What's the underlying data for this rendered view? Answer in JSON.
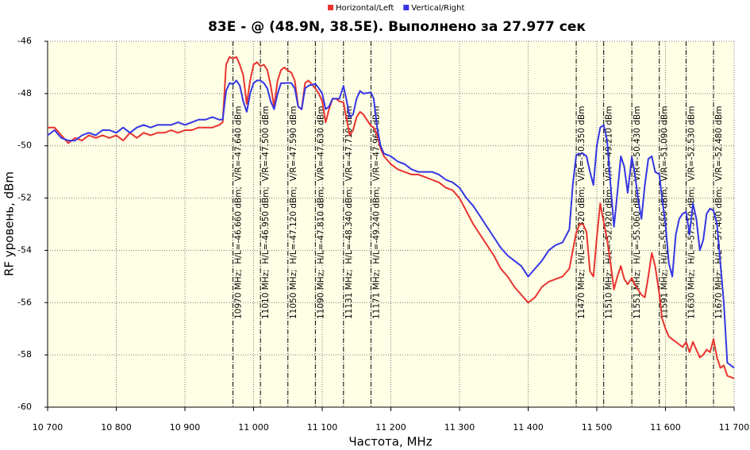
{
  "chart_data": {
    "type": "line",
    "title": "83E -  @  (48.9N, 38.5E). Выполнено за 27.977 сек",
    "x_label": "Частота, MHz",
    "y_label": "RF уровень, dBm",
    "xlim": [
      10700,
      11700
    ],
    "ylim": [
      -60,
      -46
    ],
    "xticks": [
      {
        "value": 10700,
        "label": "10 700"
      },
      {
        "value": 10800,
        "label": "10 800"
      },
      {
        "value": 10900,
        "label": "10 900"
      },
      {
        "value": 11000,
        "label": "11 000"
      },
      {
        "value": 11100,
        "label": "11 100"
      },
      {
        "value": 11200,
        "label": "11 200"
      },
      {
        "value": 11300,
        "label": "11 300"
      },
      {
        "value": 11400,
        "label": "11 400"
      },
      {
        "value": 11500,
        "label": "11 500"
      },
      {
        "value": 11600,
        "label": "11 600"
      },
      {
        "value": 11700,
        "label": "11 700"
      }
    ],
    "yticks": [
      -60,
      -58,
      -56,
      -54,
      -52,
      -50,
      -48,
      -46
    ],
    "grid": true,
    "legend": "top",
    "x": [
      10700,
      10710,
      10720,
      10730,
      10740,
      10750,
      10760,
      10770,
      10780,
      10790,
      10800,
      10810,
      10820,
      10830,
      10840,
      10850,
      10860,
      10870,
      10880,
      10890,
      10900,
      10910,
      10920,
      10930,
      10940,
      10950,
      10955,
      10960,
      10965,
      10970,
      10975,
      10980,
      10985,
      10990,
      10995,
      11000,
      11005,
      11010,
      11015,
      11020,
      11025,
      11030,
      11035,
      11040,
      11045,
      11050,
      11055,
      11060,
      11065,
      11070,
      11075,
      11080,
      11090,
      11095,
      11100,
      11105,
      11110,
      11115,
      11120,
      11125,
      11131,
      11135,
      11140,
      11145,
      11150,
      11155,
      11160,
      11171,
      11175,
      11180,
      11185,
      11190,
      11200,
      11210,
      11220,
      11230,
      11240,
      11250,
      11260,
      11270,
      11280,
      11290,
      11300,
      11310,
      11320,
      11330,
      11340,
      11350,
      11360,
      11370,
      11380,
      11390,
      11400,
      11410,
      11420,
      11430,
      11440,
      11450,
      11460,
      11465,
      11470,
      11475,
      11480,
      11485,
      11490,
      11495,
      11500,
      11505,
      11510,
      11515,
      11520,
      11525,
      11530,
      11535,
      11540,
      11545,
      11551,
      11555,
      11560,
      11565,
      11570,
      11575,
      11580,
      11585,
      11591,
      11595,
      11600,
      11605,
      11610,
      11615,
      11620,
      11625,
      11630,
      11635,
      11640,
      11645,
      11650,
      11655,
      11660,
      11665,
      11670,
      11675,
      11680,
      11685,
      11690,
      11700
    ],
    "series": [
      {
        "name": "Horizontal/Left",
        "color": "#e8332f",
        "values": [
          -49.3,
          -49.3,
          -49.6,
          -49.9,
          -49.7,
          -49.8,
          -49.6,
          -49.7,
          -49.6,
          -49.7,
          -49.6,
          -49.8,
          -49.5,
          -49.7,
          -49.5,
          -49.6,
          -49.5,
          -49.5,
          -49.4,
          -49.5,
          -49.4,
          -49.4,
          -49.3,
          -49.3,
          -49.3,
          -49.2,
          -49.1,
          -46.9,
          -46.6,
          -46.66,
          -46.6,
          -46.9,
          -47.3,
          -48.4,
          -47.5,
          -46.9,
          -46.8,
          -46.95,
          -46.9,
          -47.1,
          -47.7,
          -48.5,
          -47.5,
          -47.1,
          -47.0,
          -47.12,
          -47.2,
          -47.5,
          -48.5,
          -48.6,
          -47.6,
          -47.5,
          -47.81,
          -48.0,
          -48.3,
          -49.1,
          -48.6,
          -48.2,
          -48.2,
          -48.3,
          -48.34,
          -48.9,
          -49.6,
          -49.4,
          -48.9,
          -48.7,
          -48.8,
          -49.24,
          -49.3,
          -49.6,
          -50.1,
          -50.4,
          -50.7,
          -50.9,
          -51.0,
          -51.1,
          -51.1,
          -51.2,
          -51.3,
          -51.4,
          -51.6,
          -51.7,
          -52.0,
          -52.5,
          -53.0,
          -53.4,
          -53.8,
          -54.2,
          -54.7,
          -55.0,
          -55.4,
          -55.7,
          -56.0,
          -55.8,
          -55.4,
          -55.2,
          -55.1,
          -55.0,
          -54.7,
          -54.0,
          -53.32,
          -53.0,
          -53.0,
          -53.3,
          -54.8,
          -55.0,
          -53.5,
          -52.2,
          -52.92,
          -53.6,
          -54.5,
          -55.5,
          -55.0,
          -54.6,
          -55.1,
          -55.3,
          -55.06,
          -55.3,
          -55.5,
          -55.7,
          -55.8,
          -55.0,
          -54.1,
          -54.6,
          -55.65,
          -56.6,
          -57.0,
          -57.3,
          -57.4,
          -57.5,
          -57.6,
          -57.7,
          -57.51,
          -57.9,
          -57.5,
          -57.8,
          -58.1,
          -58.0,
          -57.8,
          -57.9,
          -57.4,
          -58.1,
          -58.5,
          -58.4,
          -58.8,
          -58.9
        ]
      },
      {
        "name": "Vertical/Right",
        "color": "#3535e3",
        "values": [
          -49.6,
          -49.4,
          -49.7,
          -49.8,
          -49.8,
          -49.6,
          -49.5,
          -49.6,
          -49.4,
          -49.4,
          -49.5,
          -49.3,
          -49.5,
          -49.3,
          -49.2,
          -49.3,
          -49.2,
          -49.2,
          -49.2,
          -49.1,
          -49.2,
          -49.1,
          -49.0,
          -49.0,
          -48.9,
          -49.0,
          -49.0,
          -47.9,
          -47.6,
          -47.64,
          -47.5,
          -47.7,
          -48.3,
          -48.7,
          -48.0,
          -47.6,
          -47.5,
          -47.5,
          -47.6,
          -47.8,
          -48.3,
          -48.6,
          -48.0,
          -47.6,
          -47.6,
          -47.59,
          -47.6,
          -47.8,
          -48.5,
          -48.6,
          -47.8,
          -47.7,
          -47.63,
          -47.8,
          -48.0,
          -48.6,
          -48.5,
          -48.2,
          -48.2,
          -48.2,
          -47.71,
          -48.2,
          -48.9,
          -48.8,
          -48.2,
          -47.9,
          -48.0,
          -47.96,
          -48.2,
          -49.3,
          -50.0,
          -50.3,
          -50.4,
          -50.6,
          -50.7,
          -50.9,
          -51.0,
          -51.0,
          -51.0,
          -51.1,
          -51.3,
          -51.4,
          -51.6,
          -52.0,
          -52.3,
          -52.7,
          -53.1,
          -53.5,
          -53.9,
          -54.2,
          -54.4,
          -54.6,
          -55.0,
          -54.7,
          -54.4,
          -54.0,
          -53.8,
          -53.7,
          -53.2,
          -51.5,
          -50.35,
          -50.3,
          -50.3,
          -50.4,
          -51.0,
          -51.5,
          -50.0,
          -49.3,
          -49.21,
          -49.8,
          -51.5,
          -53.1,
          -51.8,
          -50.4,
          -50.8,
          -51.8,
          -50.43,
          -51.0,
          -52.0,
          -52.8,
          -51.5,
          -50.5,
          -50.4,
          -51.0,
          -51.09,
          -52.0,
          -53.0,
          -54.5,
          -55.0,
          -53.4,
          -52.8,
          -52.6,
          -52.53,
          -53.4,
          -52.2,
          -52.8,
          -54.0,
          -53.6,
          -52.6,
          -52.4,
          -52.48,
          -53.0,
          -54.5,
          -56.0,
          -58.3,
          -58.5
        ]
      }
    ],
    "annotations": [
      {
        "x": 10970,
        "label": "10970 MHz;  H/L=-46.660 dBm;  V/R=-47.640 dBm"
      },
      {
        "x": 11010,
        "label": "11010 MHz;  H/L=-46.950 dBm;  V/R=-47.500 dBm"
      },
      {
        "x": 11050,
        "label": "11050 MHz;  H/L=-47.120 dBm;  V/R=-47.590 dBm"
      },
      {
        "x": 11090,
        "label": "11090 MHz;  H/L=-47.810 dBm;  V/R=-47.630 dBm"
      },
      {
        "x": 11131,
        "label": "11131 MHz;  H/L=-48.340 dBm;  V/R=-47.710 dBm"
      },
      {
        "x": 11171,
        "label": "11171 MHz;  H/L=-49.240 dBm;  V/R=-47.960 dBm"
      },
      {
        "x": 11470,
        "label": "11470 MHz;  H/L=-53.320 dBm;  V/R=-50.350 dBm"
      },
      {
        "x": 11510,
        "label": "11510 MHz;  H/L=-52.920 dBm;  V/R=-49.210 dBm"
      },
      {
        "x": 11551,
        "label": "11551 MHz;  H/L=-55.060 dBm;  V/R=-50.430 dBm"
      },
      {
        "x": 11591,
        "label": "11591 MHz;  H/L=-55.650 dBm;  V/R=-51.090 dBm"
      },
      {
        "x": 11630,
        "label": "11630 MHz;  H/L=-57.510 dBm;  V/R=-52.530 dBm"
      },
      {
        "x": 11670,
        "label": "11670 MHz;  H/L=-57.400 dBm;  V/R=-52.480 dBm"
      }
    ]
  }
}
